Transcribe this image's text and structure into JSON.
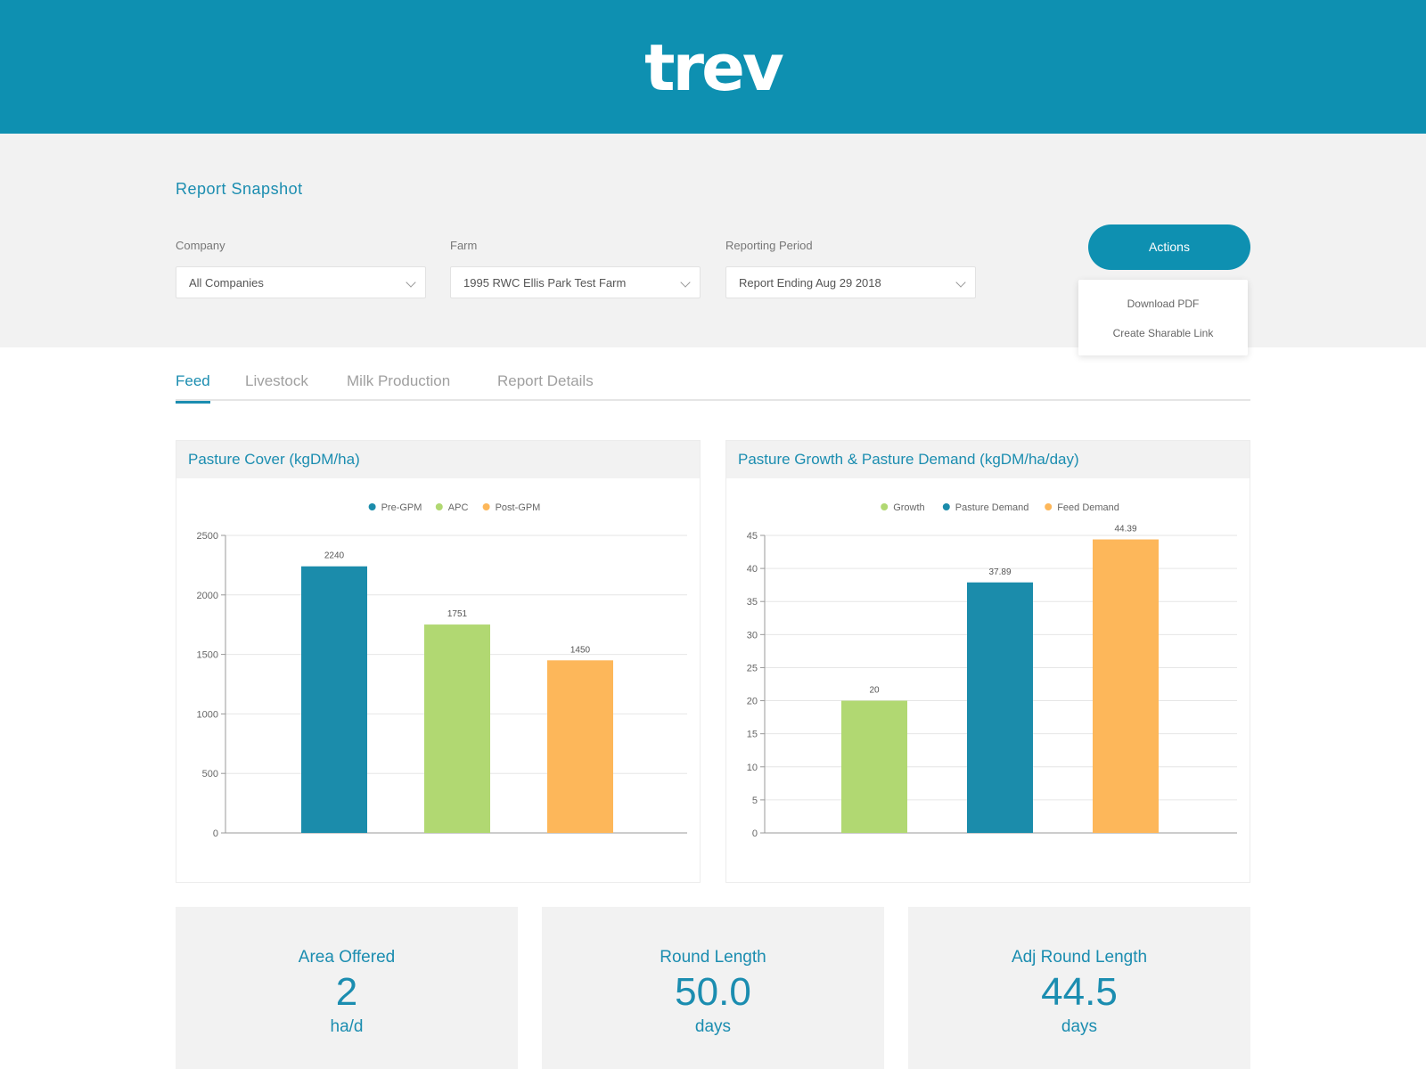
{
  "brand": {
    "logo_text": "trev",
    "header_color": "#0e90b1"
  },
  "snapshot": {
    "title": "Report Snapshot",
    "company": {
      "label": "Company",
      "value": "All Companies"
    },
    "farm": {
      "label": "Farm",
      "value": "1995 RWC Ellis Park Test Farm"
    },
    "period": {
      "label": "Reporting Period",
      "value": "Report Ending Aug 29 2018"
    }
  },
  "actions": {
    "button_label": "Actions",
    "menu": [
      "Download PDF",
      "Create Sharable Link"
    ]
  },
  "tabs": [
    {
      "label": "Feed",
      "active": true
    },
    {
      "label": "Livestock",
      "active": false
    },
    {
      "label": "Milk Production",
      "active": false
    },
    {
      "label": "Report Details",
      "active": false
    }
  ],
  "chart_data": [
    {
      "type": "bar",
      "title": "Pasture Cover (kgDM/ha)",
      "legend_position": "top",
      "grid": true,
      "categories": [
        "Pre-GPM",
        "APC",
        "Post-GPM"
      ],
      "values": [
        2240,
        1751,
        1450
      ],
      "colors": [
        "#1b8cab",
        "#b1d872",
        "#fdb75a"
      ],
      "ylim": [
        0,
        2500
      ],
      "yticks": [
        0,
        500,
        1000,
        1500,
        2000,
        2500
      ]
    },
    {
      "type": "bar",
      "title": "Pasture Growth & Pasture Demand (kgDM/ha/day)",
      "legend_position": "top",
      "grid": true,
      "categories": [
        "Growth",
        "Pasture Demand",
        "Feed Demand"
      ],
      "values": [
        20,
        37.89,
        44.39
      ],
      "colors": [
        "#b1d872",
        "#1b8cab",
        "#fdb75a"
      ],
      "ylim": [
        0,
        45
      ],
      "yticks": [
        0,
        5,
        10,
        15,
        20,
        25,
        30,
        35,
        40,
        45
      ]
    }
  ],
  "stats": [
    {
      "label": "Area Offered",
      "value": "2",
      "unit": "ha/d"
    },
    {
      "label": "Round Length",
      "value": "50.0",
      "unit": "days"
    },
    {
      "label": "Adj Round Length",
      "value": "44.5",
      "unit": "days"
    }
  ]
}
